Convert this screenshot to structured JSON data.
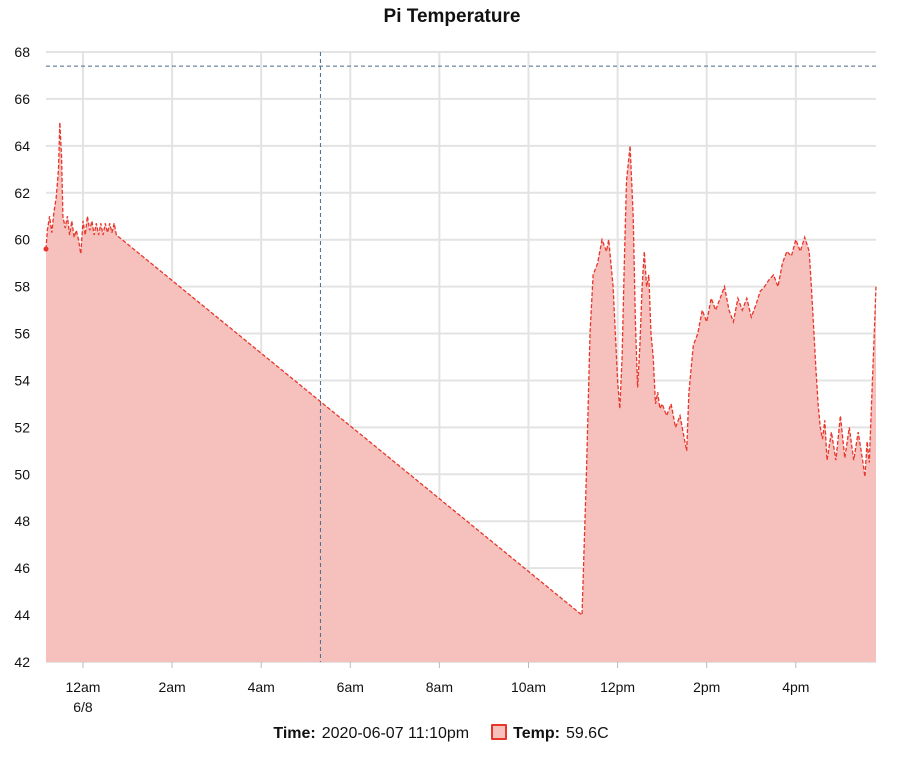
{
  "chart_data": {
    "type": "area",
    "title": "Pi Temperature",
    "xlabel": "",
    "ylabel": "",
    "ylim": [
      42,
      68
    ],
    "y_ticks": [
      "42",
      "44",
      "46",
      "48",
      "50",
      "52",
      "54",
      "56",
      "58",
      "60",
      "62",
      "64",
      "66",
      "68"
    ],
    "x_ticks": [
      {
        "label": "12am",
        "sublabel": "6/8",
        "hour": 0
      },
      {
        "label": "2am",
        "hour": 2
      },
      {
        "label": "4am",
        "hour": 4
      },
      {
        "label": "6am",
        "hour": 6
      },
      {
        "label": "8am",
        "hour": 8
      },
      {
        "label": "10am",
        "hour": 10
      },
      {
        "label": "12pm",
        "hour": 12
      },
      {
        "label": "2pm",
        "hour": 14
      },
      {
        "label": "4pm",
        "hour": 16
      }
    ],
    "grid": true,
    "crosshair": {
      "hour": 5.33,
      "value": 67.4
    },
    "series": [
      {
        "name": "Temp",
        "color": "#e8362b",
        "fill": "#f6c0bd",
        "points": [
          [
            -0.83,
            59.6
          ],
          [
            -0.8,
            60.4
          ],
          [
            -0.75,
            61.0
          ],
          [
            -0.7,
            60.3
          ],
          [
            -0.65,
            61.2
          ],
          [
            -0.6,
            61.8
          ],
          [
            -0.55,
            63.0
          ],
          [
            -0.52,
            65.0
          ],
          [
            -0.48,
            63.5
          ],
          [
            -0.45,
            61.0
          ],
          [
            -0.4,
            60.5
          ],
          [
            -0.35,
            61.0
          ],
          [
            -0.3,
            60.2
          ],
          [
            -0.25,
            60.8
          ],
          [
            -0.2,
            60.1
          ],
          [
            -0.15,
            60.4
          ],
          [
            -0.1,
            60.0
          ],
          [
            -0.05,
            59.4
          ],
          [
            0.0,
            60.8
          ],
          [
            0.05,
            60.2
          ],
          [
            0.1,
            61.0
          ],
          [
            0.15,
            60.4
          ],
          [
            0.2,
            60.8
          ],
          [
            0.25,
            60.2
          ],
          [
            0.3,
            60.7
          ],
          [
            0.35,
            60.2
          ],
          [
            0.4,
            60.7
          ],
          [
            0.45,
            60.2
          ],
          [
            0.5,
            60.7
          ],
          [
            0.55,
            60.3
          ],
          [
            0.6,
            60.7
          ],
          [
            0.65,
            60.3
          ],
          [
            0.7,
            60.7
          ],
          [
            0.75,
            60.2
          ],
          [
            11.2,
            44.0
          ],
          [
            11.3,
            50.0
          ],
          [
            11.38,
            56.0
          ],
          [
            11.45,
            58.5
          ],
          [
            11.55,
            59.0
          ],
          [
            11.65,
            60.0
          ],
          [
            11.75,
            59.5
          ],
          [
            11.8,
            60.0
          ],
          [
            11.9,
            58.0
          ],
          [
            12.0,
            54.0
          ],
          [
            12.05,
            52.8
          ],
          [
            12.1,
            55.0
          ],
          [
            12.15,
            59.0
          ],
          [
            12.2,
            62.5
          ],
          [
            12.28,
            64.0
          ],
          [
            12.35,
            61.0
          ],
          [
            12.4,
            56.5
          ],
          [
            12.45,
            53.7
          ],
          [
            12.5,
            55.5
          ],
          [
            12.55,
            58.0
          ],
          [
            12.6,
            59.5
          ],
          [
            12.65,
            58.0
          ],
          [
            12.7,
            58.5
          ],
          [
            12.75,
            56.0
          ],
          [
            12.8,
            55.0
          ],
          [
            12.85,
            53.0
          ],
          [
            12.9,
            53.5
          ],
          [
            12.95,
            52.8
          ],
          [
            13.0,
            53.0
          ],
          [
            13.1,
            52.5
          ],
          [
            13.2,
            53.0
          ],
          [
            13.3,
            52.0
          ],
          [
            13.4,
            52.5
          ],
          [
            13.5,
            51.5
          ],
          [
            13.55,
            51.0
          ],
          [
            13.6,
            53.5
          ],
          [
            13.7,
            55.5
          ],
          [
            13.8,
            56.0
          ],
          [
            13.9,
            57.0
          ],
          [
            14.0,
            56.5
          ],
          [
            14.1,
            57.5
          ],
          [
            14.2,
            57.0
          ],
          [
            14.3,
            57.5
          ],
          [
            14.4,
            58.0
          ],
          [
            14.5,
            57.0
          ],
          [
            14.6,
            56.5
          ],
          [
            14.7,
            57.5
          ],
          [
            14.8,
            57.0
          ],
          [
            14.9,
            57.5
          ],
          [
            15.0,
            56.7
          ],
          [
            15.1,
            57.2
          ],
          [
            15.2,
            57.8
          ],
          [
            15.3,
            58.0
          ],
          [
            15.4,
            58.3
          ],
          [
            15.5,
            58.5
          ],
          [
            15.6,
            58.0
          ],
          [
            15.7,
            59.0
          ],
          [
            15.8,
            59.5
          ],
          [
            15.9,
            59.3
          ],
          [
            16.0,
            60.0
          ],
          [
            16.1,
            59.5
          ],
          [
            16.2,
            60.1
          ],
          [
            16.3,
            59.5
          ],
          [
            16.35,
            58.0
          ],
          [
            16.45,
            54.5
          ],
          [
            16.5,
            53.0
          ],
          [
            16.55,
            52.0
          ],
          [
            16.6,
            51.5
          ],
          [
            16.65,
            52.3
          ],
          [
            16.7,
            50.6
          ],
          [
            16.8,
            51.8
          ],
          [
            16.9,
            50.6
          ],
          [
            17.0,
            52.5
          ],
          [
            17.1,
            50.7
          ],
          [
            17.2,
            52.0
          ],
          [
            17.3,
            50.6
          ],
          [
            17.4,
            51.8
          ],
          [
            17.5,
            50.6
          ],
          [
            17.55,
            49.9
          ],
          [
            17.6,
            51.4
          ],
          [
            17.65,
            50.5
          ],
          [
            17.7,
            53.0
          ],
          [
            17.75,
            55.5
          ],
          [
            17.8,
            58.0
          ]
        ]
      }
    ]
  },
  "legend": {
    "time_label": "Time:",
    "time_value": "2020-06-07 11:10pm",
    "temp_label": "Temp:",
    "temp_value": "59.6C"
  }
}
